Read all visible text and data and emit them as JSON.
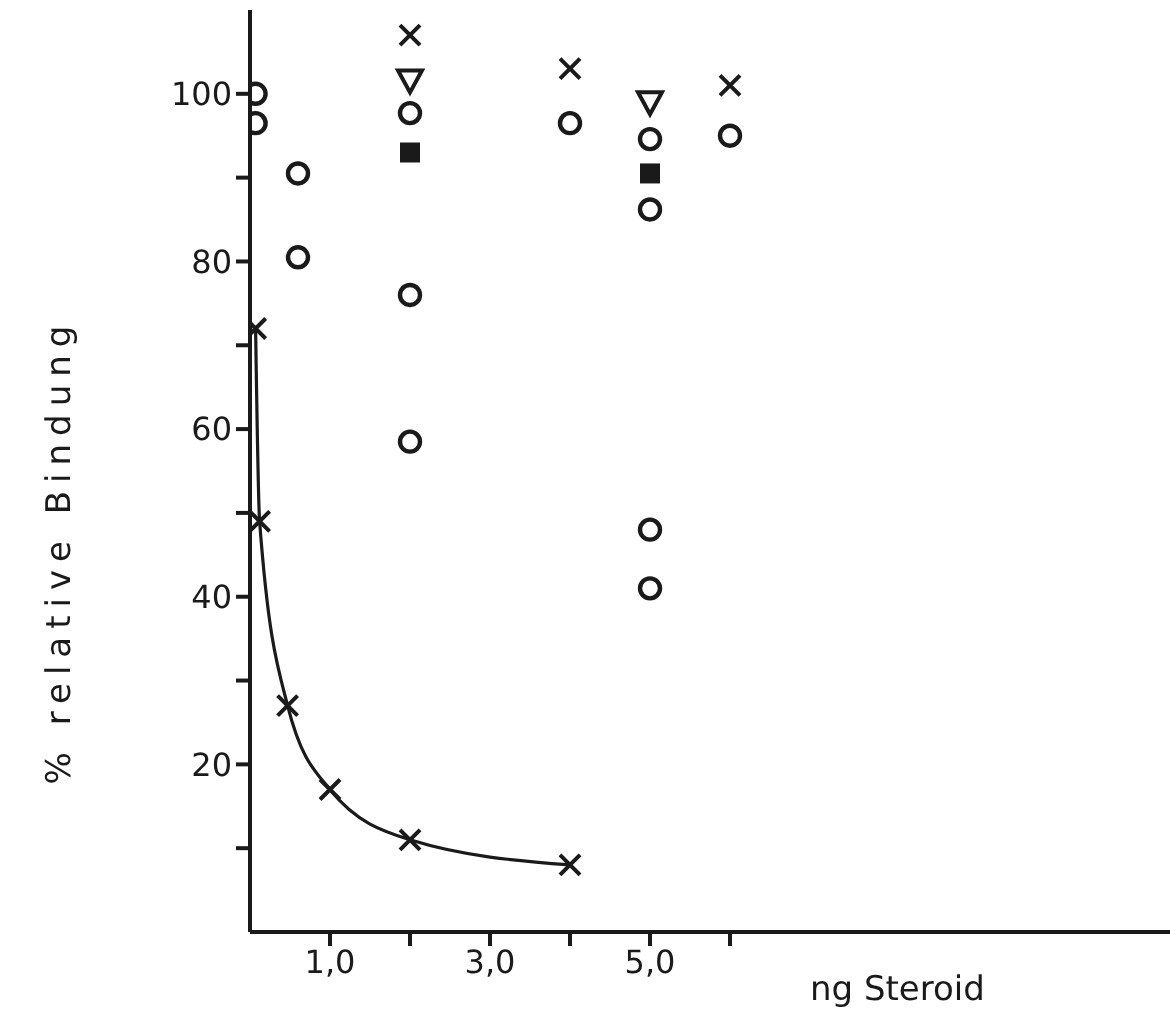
{
  "chart_data": {
    "type": "scatter",
    "xlabel": "ng Steroid",
    "ylabel": "% relative Bindung",
    "xlim": [
      0,
      11.5
    ],
    "ylim": [
      0,
      110
    ],
    "xticks": [
      {
        "value": 1,
        "label": "1,0"
      },
      {
        "value": 2,
        "label": null
      },
      {
        "value": 3,
        "label": "3,0"
      },
      {
        "value": 4,
        "label": null
      },
      {
        "value": 5,
        "label": "5,0"
      },
      {
        "value": 6,
        "label": null
      }
    ],
    "yticks": [
      {
        "value": 10,
        "label": null
      },
      20,
      {
        "value": 30,
        "label": null
      },
      40,
      {
        "value": 50,
        "label": null
      },
      60,
      {
        "value": 70,
        "label": null
      },
      80,
      {
        "value": 90,
        "label": null
      },
      100
    ],
    "grid": false,
    "series": [
      {
        "type": "line",
        "marker": "cross",
        "line_style": "solid",
        "color": "#1a1a1a",
        "x": [
          0.07,
          0.12,
          0.47,
          1,
          2,
          4
        ],
        "values": [
          72,
          49,
          27,
          17,
          11,
          8
        ]
      },
      {
        "marker": "circle",
        "color": "#1a1a1a",
        "x": [
          0.07,
          0.6,
          2,
          5
        ],
        "values": [
          100,
          90.5,
          76,
          48
        ]
      },
      {
        "marker": "circle",
        "color": "#1a1a1a",
        "x": [
          0.07,
          0.6,
          2,
          5
        ],
        "values": [
          96.5,
          80.5,
          58.5,
          41
        ]
      },
      {
        "marker": "cross",
        "color": "#1a1a1a",
        "x": [
          2,
          4,
          6
        ],
        "values": [
          107,
          103,
          101
        ]
      },
      {
        "marker": "triangle",
        "color": "#1a1a1a",
        "x": [
          2,
          5
        ],
        "values": [
          101.6,
          99
        ]
      },
      {
        "marker": "circle",
        "color": "#1a1a1a",
        "x": [
          2,
          4,
          5
        ],
        "values": [
          97.7,
          96.5,
          86.2
        ]
      },
      {
        "marker": "square",
        "color": "#1a1a1a",
        "x": [
          2,
          5
        ],
        "values": [
          93,
          90.5
        ]
      },
      {
        "marker": "circle",
        "color": "#1a1a1a",
        "x": [
          5
        ],
        "values": [
          94.6
        ]
      },
      {
        "marker": "circle",
        "color": "#1a1a1a",
        "x": [
          6
        ],
        "values": [
          95
        ]
      }
    ]
  }
}
